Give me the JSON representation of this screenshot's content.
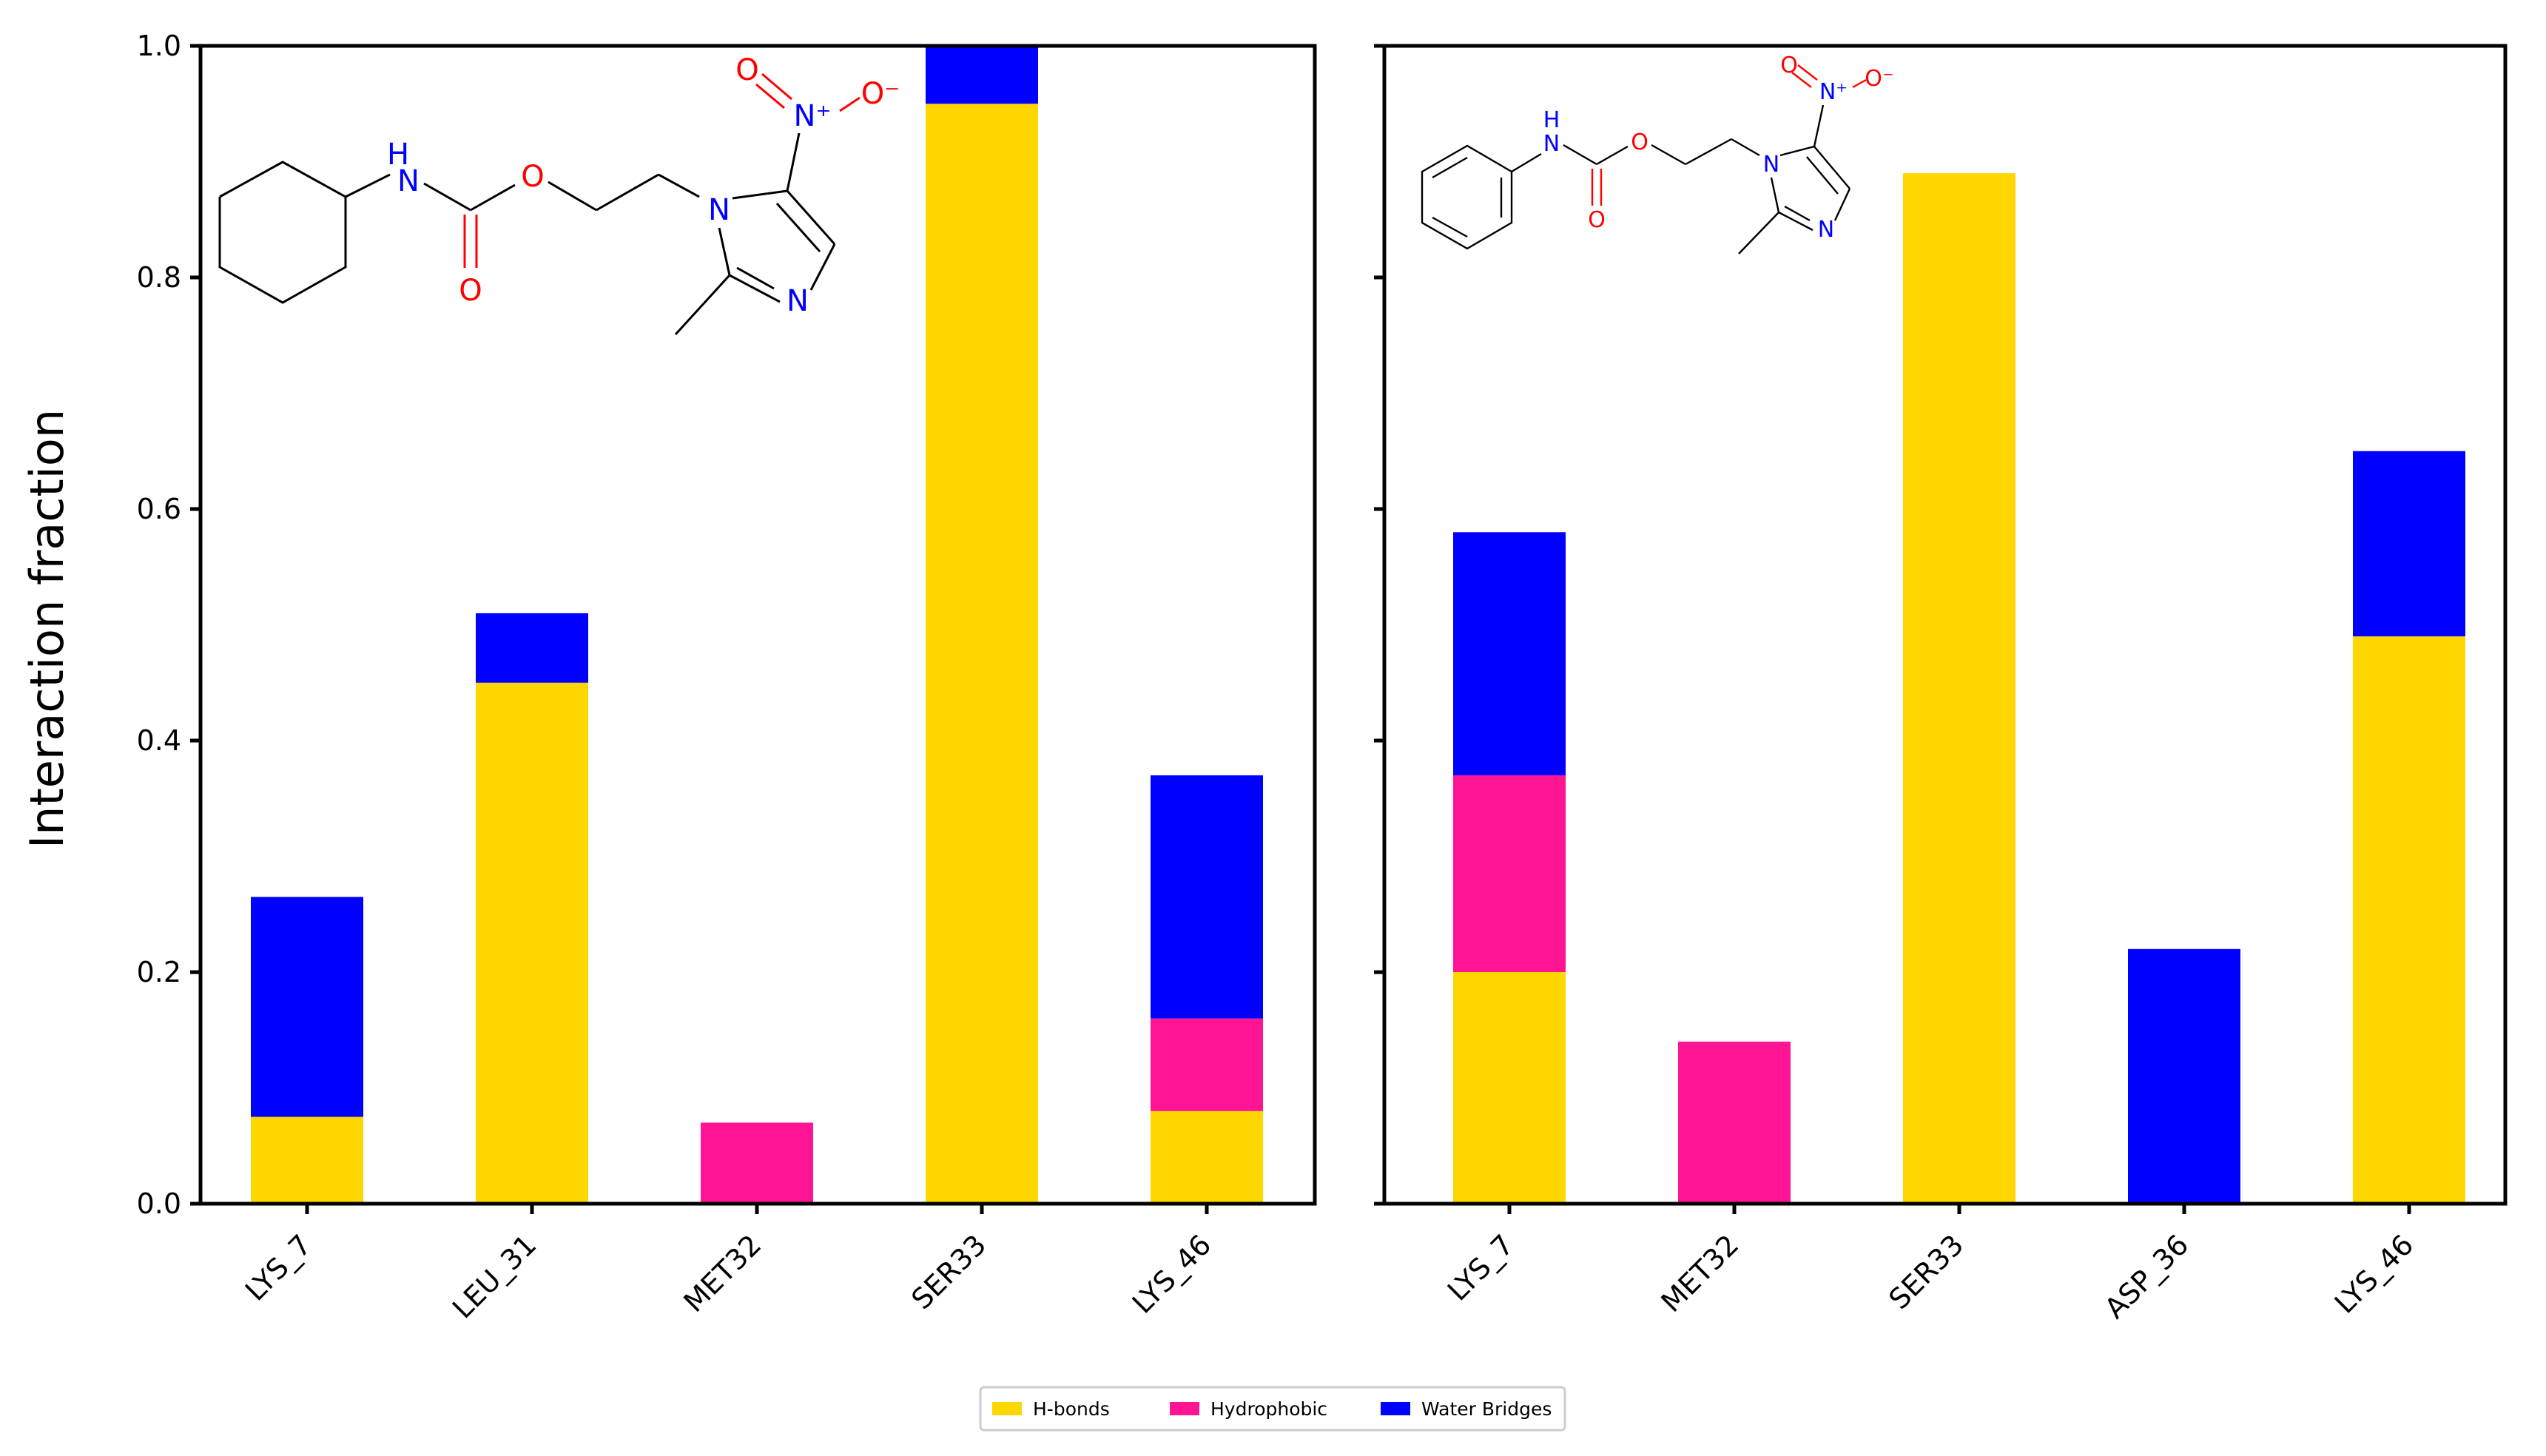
{
  "chart_data": [
    {
      "type": "bar",
      "stacked": true,
      "ylabel": "Interaction fraction",
      "ylim": [
        0,
        1.0
      ],
      "yticks": [
        "0.0",
        "0.2",
        "0.4",
        "0.6",
        "0.8",
        "1.0"
      ],
      "categories": [
        "LYS_7",
        "LEU_31",
        "MET32",
        "SER33",
        "LYS_46"
      ],
      "series": [
        {
          "name": "H-bonds",
          "values": [
            0.075,
            0.45,
            0.0,
            0.95,
            0.08
          ]
        },
        {
          "name": "Hydrophobic",
          "values": [
            0.0,
            0.0,
            0.07,
            0.0,
            0.08
          ]
        },
        {
          "name": "Water Bridges",
          "values": [
            0.19,
            0.06,
            0.0,
            0.05,
            0.21
          ]
        }
      ]
    },
    {
      "type": "bar",
      "stacked": true,
      "ylim": [
        0,
        1.0
      ],
      "categories": [
        "LYS_7",
        "MET32",
        "SER33",
        "ASP_36",
        "LYS_46"
      ],
      "series": [
        {
          "name": "H-bonds",
          "values": [
            0.2,
            0.0,
            0.89,
            0.0,
            0.49
          ]
        },
        {
          "name": "Hydrophobic",
          "values": [
            0.17,
            0.14,
            0.0,
            0.0,
            0.0
          ]
        },
        {
          "name": "Water Bridges",
          "values": [
            0.21,
            0.0,
            0.0,
            0.22,
            0.16
          ]
        }
      ]
    }
  ],
  "legend": {
    "position": "bottom-center",
    "items": [
      {
        "label": "H-bonds",
        "color": "#FFD700"
      },
      {
        "label": "Hydrophobic",
        "color": "#FF1493"
      },
      {
        "label": "Water Bridges",
        "color": "#0000FF"
      }
    ]
  },
  "molecules": {
    "left": {
      "nh": "H",
      "n_amide": "N",
      "o_ester": "O",
      "o_carbonyl": "O",
      "n_ring1": "N",
      "n_ring3": "N",
      "n_nitro": "N⁺",
      "o_nitro1": "O",
      "o_nitro2": "O⁻"
    },
    "right": {
      "nh": "H",
      "n_amide": "N",
      "o_ester": "O",
      "o_carbonyl": "O",
      "n_ring1": "N",
      "n_ring3": "N",
      "n_nitro": "N⁺",
      "o_nitro1": "O",
      "o_nitro2": "O⁻"
    }
  }
}
